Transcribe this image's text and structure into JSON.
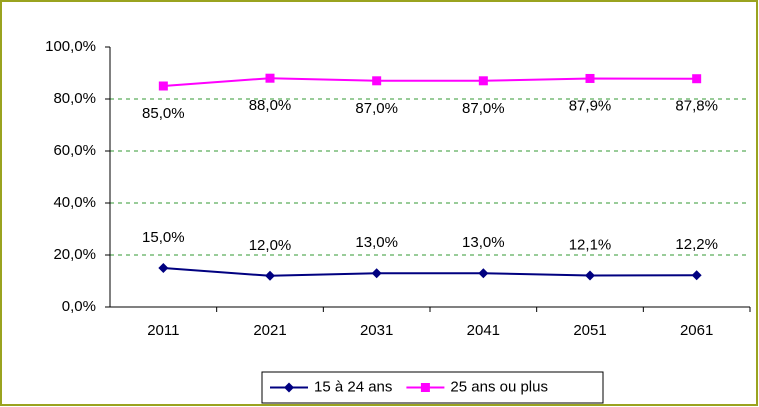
{
  "chart_data": {
    "type": "line",
    "categories": [
      "2011",
      "2021",
      "2031",
      "2041",
      "2051",
      "2061"
    ],
    "series": [
      {
        "name": "15 à 24 ans",
        "color": "#000080",
        "marker": "diamond",
        "values": [
          15.0,
          12.0,
          13.0,
          13.0,
          12.1,
          12.2
        ],
        "value_labels": [
          "15,0%",
          "12,0%",
          "13,0%",
          "13,0%",
          "12,1%",
          "12,2%"
        ]
      },
      {
        "name": "25 ans ou plus",
        "color": "#ff00ff",
        "marker": "square",
        "values": [
          85.0,
          88.0,
          87.0,
          87.0,
          87.9,
          87.8
        ],
        "value_labels": [
          "85,0%",
          "88,0%",
          "87,0%",
          "87,0%",
          "87,9%",
          "87,8%"
        ]
      }
    ],
    "ylim": [
      0,
      100
    ],
    "yticks": [
      {
        "value": 0,
        "label": "0,0%"
      },
      {
        "value": 20,
        "label": "20,0%"
      },
      {
        "value": 40,
        "label": "40,0%"
      },
      {
        "value": 60,
        "label": "60,0%"
      },
      {
        "value": 80,
        "label": "80,0%"
      },
      {
        "value": 100,
        "label": "100,0%"
      }
    ],
    "grid": true,
    "grid_color": "#339933",
    "legend": "bottom"
  }
}
